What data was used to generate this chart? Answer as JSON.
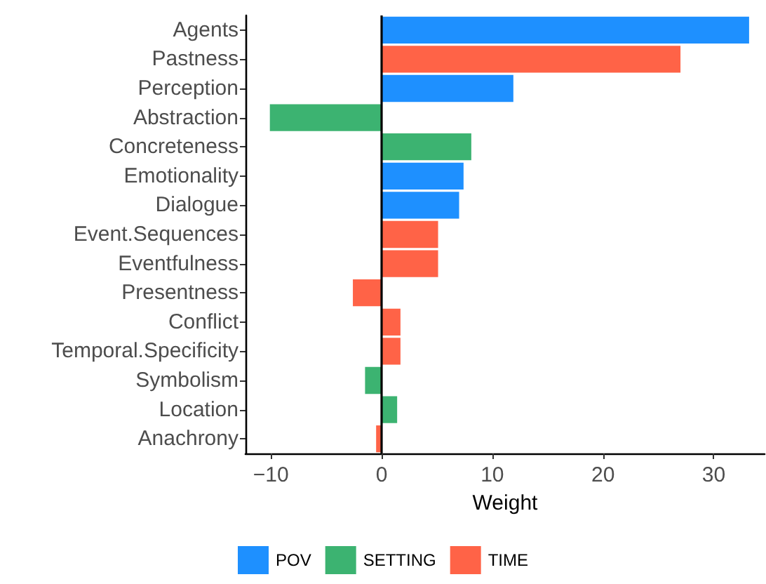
{
  "chart_data": {
    "type": "bar",
    "orientation": "horizontal",
    "stacked": true,
    "xlabel": "Weight",
    "categories": [
      "Agents",
      "Pastness",
      "Perception",
      "Abstraction",
      "Concreteness",
      "Emotionality",
      "Dialogue",
      "Event.Sequences",
      "Eventfulness",
      "Presentness",
      "Conflict",
      "Temporal.Specificity",
      "Symbolism",
      "Location",
      "Anachrony"
    ],
    "series": [
      {
        "name": "POV",
        "color": "#1e90ff",
        "values": [
          33.2,
          null,
          11.9,
          null,
          null,
          7.4,
          7.0,
          null,
          null,
          null,
          null,
          null,
          null,
          null,
          null
        ]
      },
      {
        "name": "SETTING",
        "color": "#3cb371",
        "values": [
          null,
          null,
          null,
          -10.1,
          8.1,
          null,
          null,
          null,
          null,
          null,
          null,
          null,
          -1.5,
          1.4,
          null
        ]
      },
      {
        "name": "TIME",
        "color": "#ff6347",
        "values": [
          null,
          27.0,
          null,
          null,
          null,
          null,
          null,
          5.1,
          5.1,
          -2.6,
          1.7,
          1.7,
          null,
          null,
          -0.5
        ]
      }
    ],
    "xlim": [
      -12.3,
      34.6
    ],
    "xticks": [
      -10,
      0,
      10,
      20,
      30
    ],
    "ref_lines": [
      {
        "axis": "x",
        "value": 0,
        "color": "#000000",
        "line_style": "solid"
      }
    ],
    "grid": false,
    "legend": "bottom"
  }
}
